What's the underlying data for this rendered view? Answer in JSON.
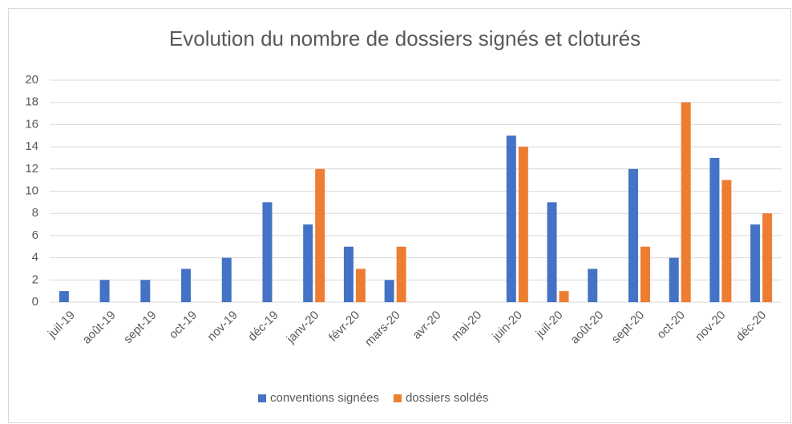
{
  "chart_data": {
    "type": "bar",
    "title": "Evolution du nombre de dossiers signés et cloturés",
    "categories": [
      "juil-19",
      "août-19",
      "sept-19",
      "oct-19",
      "nov-19",
      "déc-19",
      "janv-20",
      "févr-20",
      "mars-20",
      "avr-20",
      "mai-20",
      "juin-20",
      "juil-20",
      "août-20",
      "sept-20",
      "oct-20",
      "nov-20",
      "déc-20"
    ],
    "series": [
      {
        "name": "conventions signées",
        "color": "#4472c4",
        "values": [
          1,
          2,
          2,
          3,
          4,
          9,
          7,
          5,
          2,
          0,
          0,
          15,
          9,
          3,
          12,
          4,
          13,
          7
        ]
      },
      {
        "name": "dossiers soldés",
        "color": "#ed7d31",
        "values": [
          0,
          0,
          0,
          0,
          0,
          0,
          12,
          3,
          5,
          0,
          0,
          14,
          1,
          0,
          5,
          18,
          11,
          8
        ]
      }
    ],
    "ylim": [
      0,
      20
    ],
    "yticks": [
      0,
      2,
      4,
      6,
      8,
      10,
      12,
      14,
      16,
      18,
      20
    ],
    "grid": true,
    "legend": "bottom"
  }
}
